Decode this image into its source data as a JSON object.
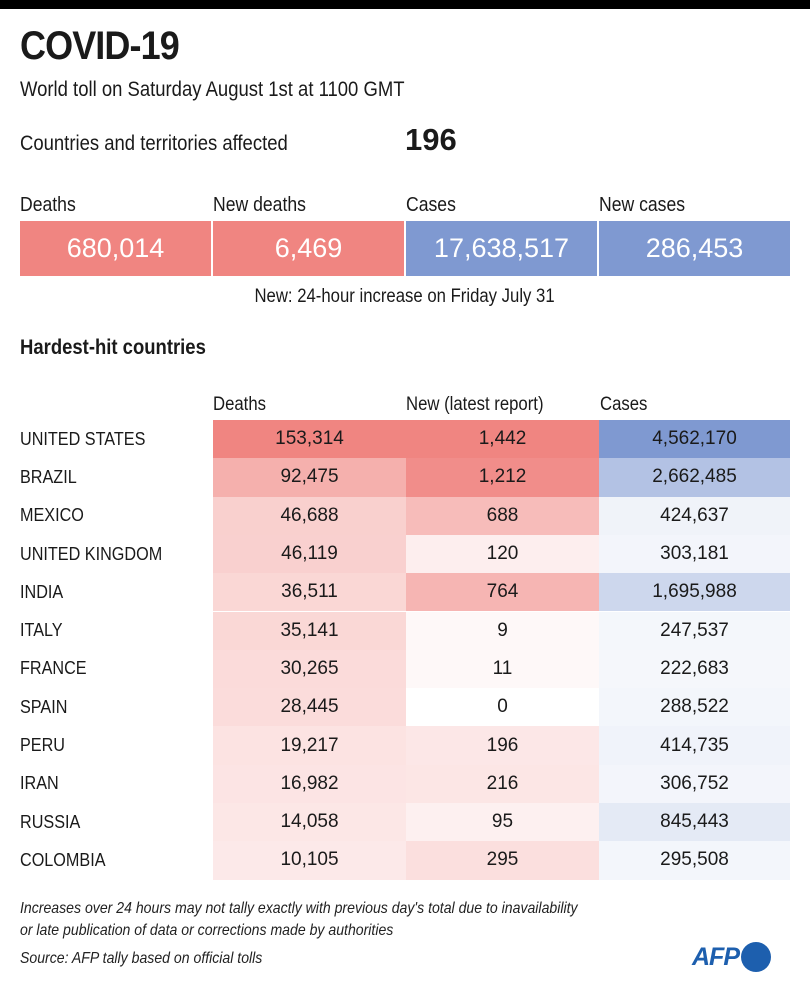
{
  "header": {
    "title": "COVID-19",
    "subtitle": "World toll on Saturday August 1st at 1100 GMT",
    "affected_label": "Countries and territories affected",
    "affected_value": "196"
  },
  "summary": {
    "items": [
      {
        "label": "Deaths",
        "value": "680,014",
        "color": "#f08581"
      },
      {
        "label": "New deaths",
        "value": "6,469",
        "color": "#f08581"
      },
      {
        "label": "Cases",
        "value": "17,638,517",
        "color": "#7f99d1"
      },
      {
        "label": "New cases",
        "value": "286,453",
        "color": "#7f99d1"
      }
    ],
    "note": "New: 24-hour increase on Friday July 31"
  },
  "section_title": "Hardest-hit countries",
  "chart_data": {
    "type": "table",
    "title": "Hardest-hit countries",
    "columns": [
      "Deaths",
      "New (latest report)",
      "Cases"
    ],
    "rows": [
      {
        "country": "UNITED STATES",
        "deaths": 153314,
        "new": 1442,
        "cases": 4562170,
        "deaths_label": "153,314",
        "new_label": "1,442",
        "cases_label": "4,562,170"
      },
      {
        "country": "BRAZIL",
        "deaths": 92475,
        "new": 1212,
        "cases": 2662485,
        "deaths_label": "92,475",
        "new_label": "1,212",
        "cases_label": "2,662,485"
      },
      {
        "country": "MEXICO",
        "deaths": 46688,
        "new": 688,
        "cases": 424637,
        "deaths_label": "46,688",
        "new_label": "688",
        "cases_label": "424,637"
      },
      {
        "country": "UNITED KINGDOM",
        "deaths": 46119,
        "new": 120,
        "cases": 303181,
        "deaths_label": "46,119",
        "new_label": "120",
        "cases_label": "303,181"
      },
      {
        "country": "INDIA",
        "deaths": 36511,
        "new": 764,
        "cases": 1695988,
        "deaths_label": "36,511",
        "new_label": "764",
        "cases_label": "1,695,988"
      },
      {
        "country": "ITALY",
        "deaths": 35141,
        "new": 9,
        "cases": 247537,
        "deaths_label": "35,141",
        "new_label": "9",
        "cases_label": "247,537"
      },
      {
        "country": "FRANCE",
        "deaths": 30265,
        "new": 11,
        "cases": 222683,
        "deaths_label": "30,265",
        "new_label": "11",
        "cases_label": "222,683"
      },
      {
        "country": "SPAIN",
        "deaths": 28445,
        "new": 0,
        "cases": 288522,
        "deaths_label": "28,445",
        "new_label": "0",
        "cases_label": "288,522"
      },
      {
        "country": "PERU",
        "deaths": 19217,
        "new": 196,
        "cases": 414735,
        "deaths_label": "19,217",
        "new_label": "196",
        "cases_label": "414,735"
      },
      {
        "country": "IRAN",
        "deaths": 16982,
        "new": 216,
        "cases": 306752,
        "deaths_label": "16,982",
        "new_label": "216",
        "cases_label": "306,752"
      },
      {
        "country": "RUSSIA",
        "deaths": 14058,
        "new": 95,
        "cases": 845443,
        "deaths_label": "14,058",
        "new_label": "95",
        "cases_label": "845,443"
      },
      {
        "country": "COLOMBIA",
        "deaths": 10105,
        "new": 295,
        "cases": 295508,
        "deaths_label": "10,105",
        "new_label": "295",
        "cases_label": "295,508"
      }
    ],
    "colors": {
      "deaths_scale": "#f08581",
      "cases_scale": "#7f99d1"
    }
  },
  "footer": {
    "note_line1": "Increases over 24 hours may not tally exactly with previous day's total due to inavailability",
    "note_line2": "or late publication of data or corrections made by authorities",
    "source": "Source: AFP tally based on official tolls",
    "logo": "AFP"
  }
}
